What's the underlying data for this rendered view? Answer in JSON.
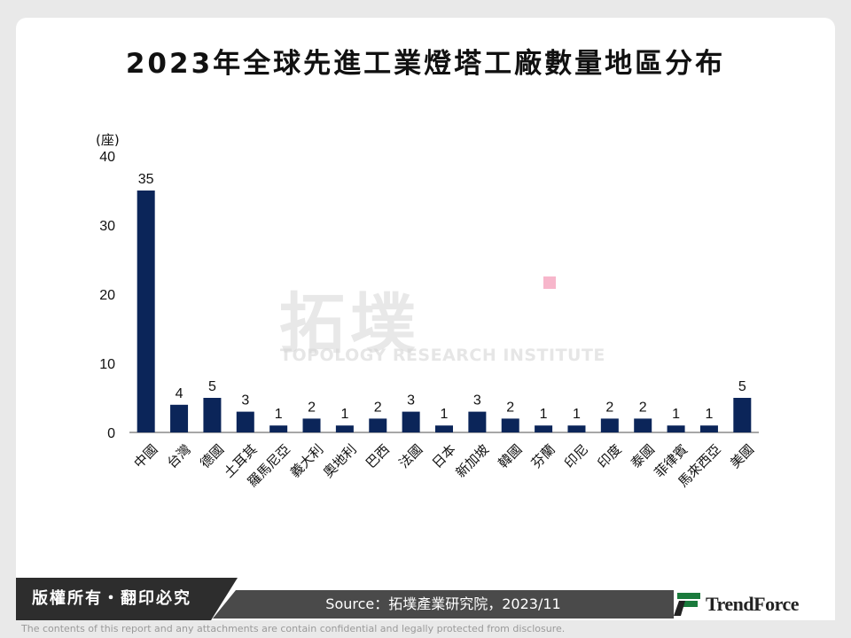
{
  "title": "2023年全球先進工業燈塔工廠數量地區分布",
  "watermark": {
    "cn": "拓墣",
    "en": "TOPOLOGY RESEARCH INSTITUTE",
    "accent_color": "#f7b6cb"
  },
  "chart_data": {
    "type": "bar",
    "title": "2023年全球先進工業燈塔工廠數量地區分布",
    "ylabel": "(座)",
    "xlabel": "",
    "ylim": [
      0,
      40
    ],
    "yticks": [
      0,
      10,
      20,
      30,
      40
    ],
    "grid": false,
    "bar_color": "#0b2559",
    "categories": [
      "中國",
      "台灣",
      "德國",
      "土耳其",
      "羅馬尼亞",
      "義大利",
      "奧地利",
      "巴西",
      "法國",
      "日本",
      "新加坡",
      "韓國",
      "芬蘭",
      "印尼",
      "印度",
      "泰國",
      "菲律賓",
      "馬來西亞",
      "美國"
    ],
    "values": [
      35,
      4,
      5,
      3,
      1,
      2,
      1,
      2,
      3,
      1,
      3,
      2,
      1,
      1,
      2,
      2,
      1,
      1,
      5
    ]
  },
  "footer": {
    "copyright": "版權所有・翻印必究",
    "source": "Source：拓墣產業研究院，2023/11",
    "brand": "TrendForce",
    "brand_color": "#1a7a3c",
    "disclaimer": "The contents of this report and any attachments are contain confidential and legally protected from disclosure."
  }
}
